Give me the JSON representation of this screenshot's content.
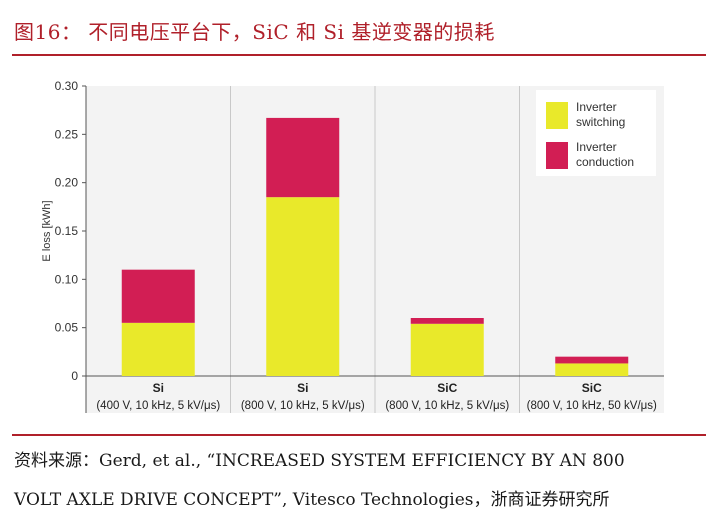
{
  "page": {
    "title": "图16： 不同电压平台下，SiC 和 Si 基逆变器的损耗",
    "source_line1": "资料来源：Gerd, et al., “INCREASED SYSTEM EFFICIENCY BY AN 800",
    "source_line2": "VOLT AXLE DRIVE CONCEPT”, Vitesco Technologies，浙商证券研究所"
  },
  "colors": {
    "accent": "#b0202a",
    "switching": "#e9e92a",
    "conduction": "#d21e54",
    "panel_bg": "#f3f3f3"
  },
  "chart_data": {
    "type": "bar",
    "stacked": true,
    "ylabel": "E loss [kWh]",
    "ylim": [
      0,
      0.3
    ],
    "yticks": [
      "0",
      "0.05",
      "0.10",
      "0.15",
      "0.20",
      "0.25",
      "0.30"
    ],
    "categories": [
      {
        "name": "Si",
        "condition": "(400 V, 10 kHz, 5 kV/μs)"
      },
      {
        "name": "Si",
        "condition": "(800 V, 10 kHz, 5 kV/μs)"
      },
      {
        "name": "SiC",
        "condition": "(800 V, 10 kHz, 5 kV/μs)"
      },
      {
        "name": "SiC",
        "condition": "(800 V, 10 kHz, 50 kV/μs)"
      }
    ],
    "series": [
      {
        "name": "Inverter switching",
        "legend_lines": [
          "Inverter",
          "switching"
        ],
        "color": "#e9e92a",
        "values": [
          0.055,
          0.185,
          0.054,
          0.013
        ]
      },
      {
        "name": "Inverter conduction",
        "legend_lines": [
          "Inverter",
          "conduction"
        ],
        "color": "#d21e54",
        "values": [
          0.055,
          0.082,
          0.006,
          0.007
        ]
      }
    ],
    "legend_position": "top-right",
    "grid": false
  }
}
